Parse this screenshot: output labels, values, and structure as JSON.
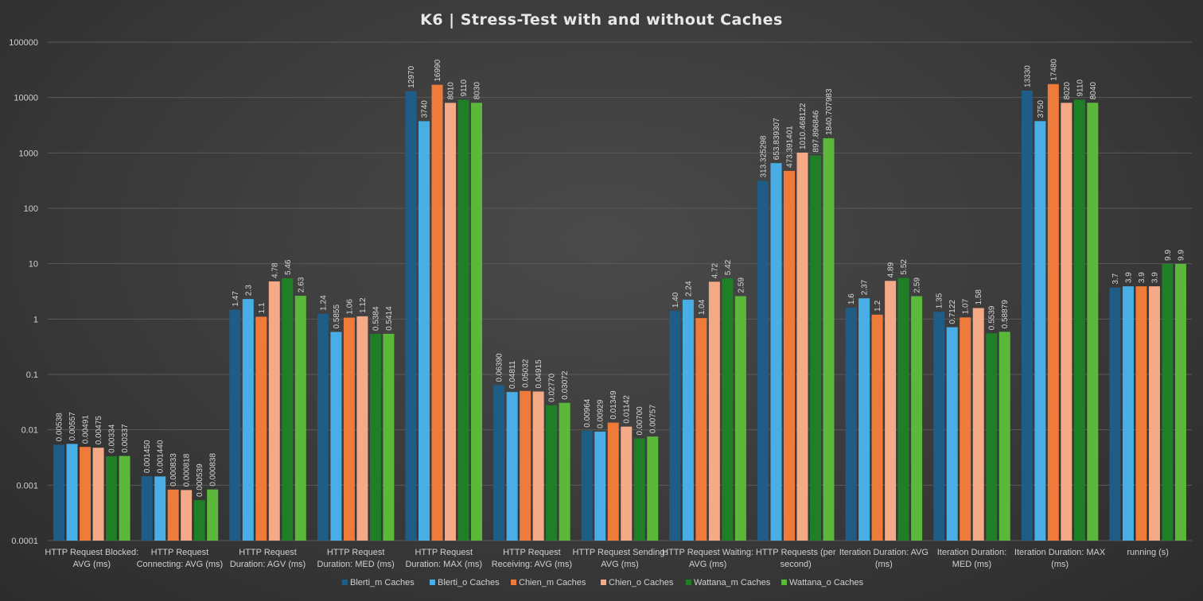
{
  "chart_data": {
    "type": "bar",
    "title": "K6 | Stress-Test with and without Caches",
    "yscale": "log",
    "ylim": [
      0.0001,
      100000
    ],
    "yticks": [
      "0.0001",
      "0.001",
      "0.01",
      "0.1",
      "1",
      "10",
      "100",
      "1000",
      "10000",
      "100000"
    ],
    "grid": true,
    "legend_position": "bottom",
    "categories": [
      [
        "HTTP Request Blocked:",
        "AVG (ms)"
      ],
      [
        "HTTP Request",
        "Connecting: AVG (ms)"
      ],
      [
        "HTTP Request",
        "Duration: AGV (ms)"
      ],
      [
        "HTTP Request",
        "Duration: MED (ms)"
      ],
      [
        "HTTP Request",
        "Duration: MAX (ms)"
      ],
      [
        "HTTP Request",
        "Receiving: AVG (ms)"
      ],
      [
        "HTTP Request Sending:",
        "AVG (ms)"
      ],
      [
        "HTTP Request Waiting:",
        "AVG (ms)"
      ],
      [
        "HTTP Requests (per",
        "second)"
      ],
      [
        "Iteration Duration: AVG",
        "(ms)"
      ],
      [
        "Iteration Duration:",
        "MED (ms)"
      ],
      [
        "Iteration Duration: MAX",
        "(ms)"
      ],
      [
        "running (s)"
      ]
    ],
    "series": [
      {
        "name": "Blerti_m Caches",
        "color": "#1f5d86",
        "values": [
          0.00538,
          0.00145,
          1.47,
          1.24,
          12970,
          0.0639,
          0.00964,
          1.4,
          313.325298,
          1.6,
          1.35,
          13330,
          3.7
        ],
        "labels": [
          "0.00538",
          "0.001450",
          "1.47",
          "1.24",
          "12970",
          "0.06390",
          "0.00964",
          "1.40",
          "313.325298",
          "1.6",
          "1.35",
          "13330",
          "3.7"
        ]
      },
      {
        "name": "Blerti_o Caches",
        "color": "#4aaee6",
        "values": [
          0.00557,
          0.00144,
          2.3,
          0.5855,
          3740,
          0.04811,
          0.00929,
          2.24,
          653.839307,
          2.37,
          0.7122,
          3750,
          3.9
        ],
        "labels": [
          "0.00557",
          "0.001440",
          "2.3",
          "0.5855",
          "3740",
          "0.04811",
          "0.00929",
          "2.24",
          "653.839307",
          "2.37",
          "0.7122",
          "3750",
          "3.9"
        ]
      },
      {
        "name": "Chien_m Caches",
        "color": "#ee7b3a",
        "values": [
          0.00491,
          0.000833,
          1.1,
          1.06,
          16990,
          0.05032,
          0.01349,
          1.04,
          473.391401,
          1.2,
          1.07,
          17480,
          3.9
        ],
        "labels": [
          "0.00491",
          "0.000833",
          "1.1",
          "1.06",
          "16990",
          "0.05032",
          "0.01349",
          "1.04",
          "473.391401",
          "1.2",
          "1.07",
          "17480",
          "3.9"
        ]
      },
      {
        "name": "Chien_o Caches",
        "color": "#f4a987",
        "values": [
          0.00475,
          0.000818,
          4.78,
          1.12,
          8010,
          0.04915,
          0.01142,
          4.72,
          1010.468122,
          4.89,
          1.58,
          8020,
          3.9
        ],
        "labels": [
          "0.00475",
          "0.000818",
          "4.78",
          "1.12",
          "8010",
          "0.04915",
          "0.01142",
          "4.72",
          "1010.468122",
          "4.89",
          "1.58",
          "8020",
          "3.9"
        ]
      },
      {
        "name": "Wattana_m Caches",
        "color": "#1e7f26",
        "values": [
          0.00334,
          0.000539,
          5.46,
          0.5384,
          9110,
          0.0277,
          0.007,
          5.42,
          897.896846,
          5.52,
          0.5539,
          9110,
          9.9
        ],
        "labels": [
          "0.00334",
          "0.000539",
          "5.46",
          "0.5384",
          "9110",
          "0.02770",
          "0.00700",
          "5.42",
          "897.896846",
          "5.52",
          "0.5539",
          "9110",
          "9.9"
        ]
      },
      {
        "name": "Wattana_o Caches",
        "color": "#5cb83a",
        "values": [
          0.00337,
          0.000838,
          2.63,
          0.5414,
          8030,
          0.03072,
          0.00757,
          2.59,
          1840.707983,
          2.59,
          0.58879,
          8040,
          9.9
        ],
        "labels": [
          "0.00337",
          "0.000838",
          "2.63",
          "0.5414",
          "8030",
          "0.03072",
          "0.00757",
          "2.59",
          "1840.707983",
          "2.59",
          "0.58879",
          "8040",
          "9.9"
        ]
      }
    ]
  }
}
